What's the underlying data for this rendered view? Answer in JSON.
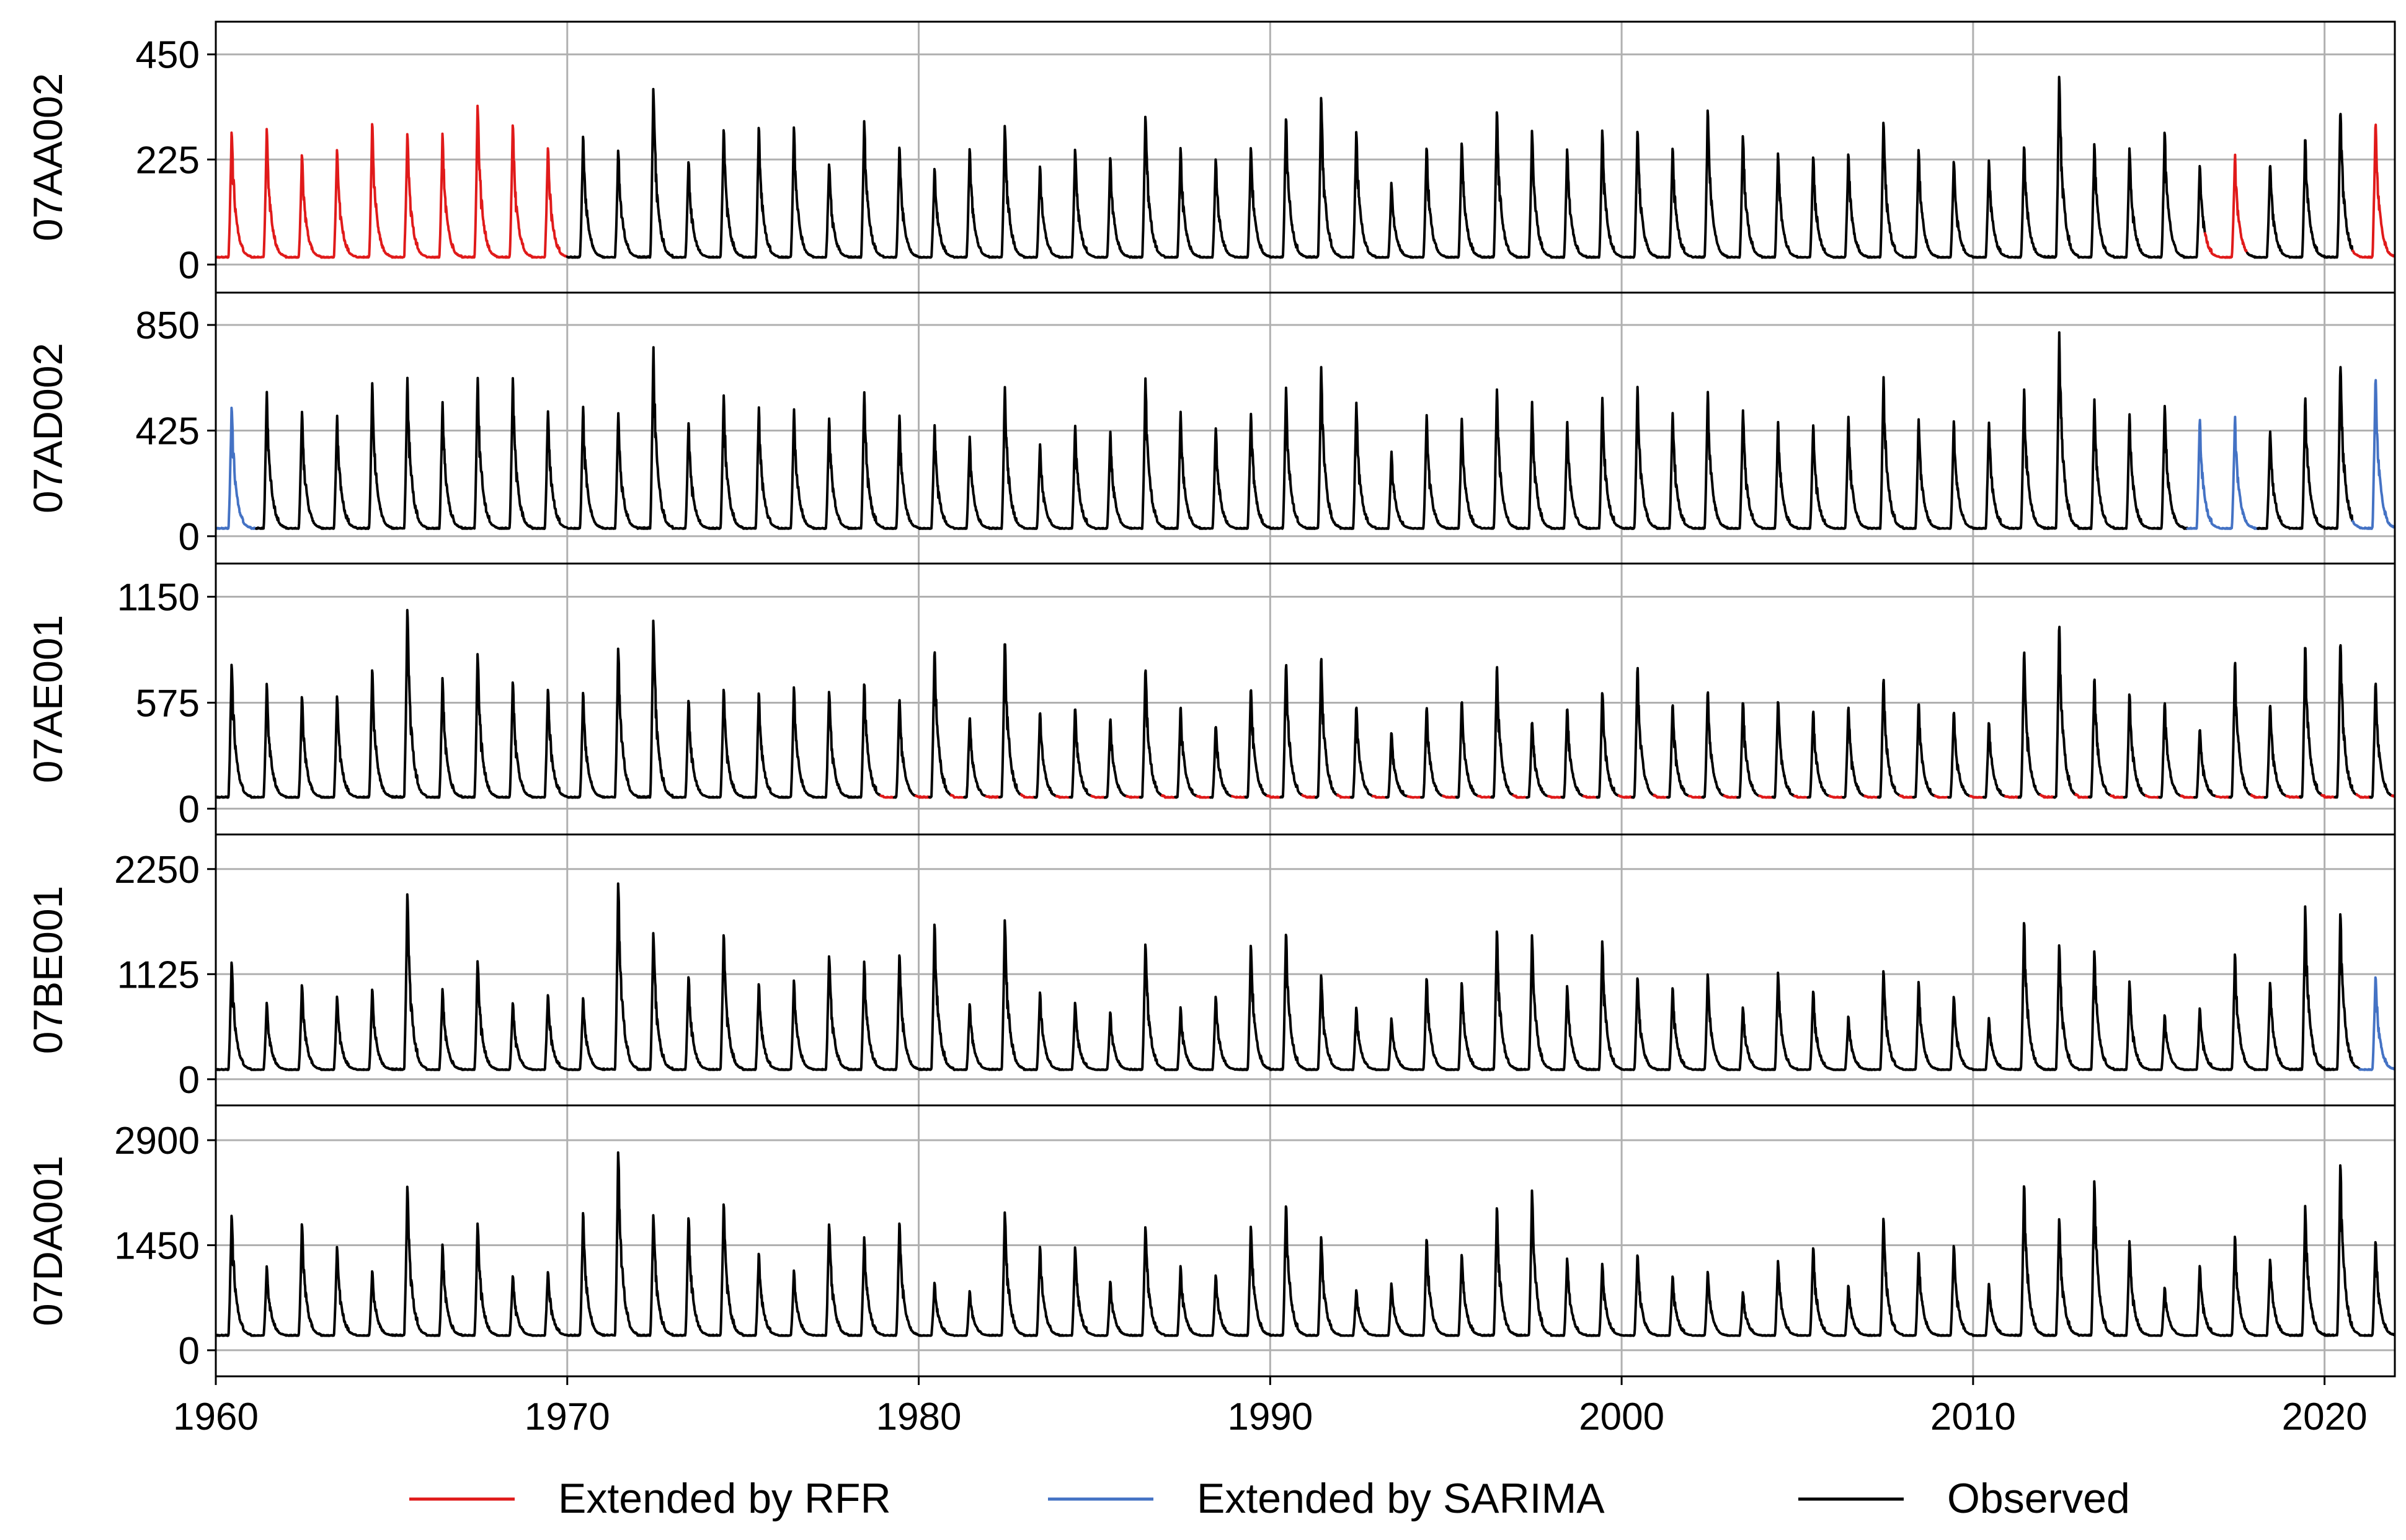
{
  "chart_data": {
    "type": "line",
    "x_axis": {
      "range": [
        1960,
        2022
      ],
      "ticks": [
        1960,
        1970,
        1980,
        1990,
        2000,
        2010,
        2020
      ],
      "grid": true
    },
    "legend": {
      "placement": "bottom-center",
      "entries": [
        {
          "key": "rfr",
          "label": "Extended by RFR",
          "color": "#e01a1a"
        },
        {
          "key": "sarima",
          "label": "Extended by SARIMA",
          "color": "#4472c4"
        },
        {
          "key": "observed",
          "label": "Observed",
          "color": "#000000"
        }
      ]
    },
    "panels": [
      {
        "station": "07AA002",
        "y_ticks": [
          0,
          225,
          450
        ],
        "y_range": [
          -60,
          520
        ],
        "base": 15,
        "years": [
          1960,
          1961,
          1962,
          1963,
          1964,
          1965,
          1966,
          1967,
          1968,
          1969,
          1970,
          1971,
          1972,
          1973,
          1974,
          1975,
          1976,
          1977,
          1978,
          1979,
          1980,
          1981,
          1982,
          1983,
          1984,
          1985,
          1986,
          1987,
          1988,
          1989,
          1990,
          1991,
          1992,
          1993,
          1994,
          1995,
          1996,
          1997,
          1998,
          1999,
          2000,
          2001,
          2002,
          2003,
          2004,
          2005,
          2006,
          2007,
          2008,
          2009,
          2010,
          2011,
          2012,
          2013,
          2014,
          2015,
          2016,
          2017,
          2018,
          2019,
          2020,
          2021
        ],
        "peaks": [
          290,
          292,
          240,
          250,
          305,
          285,
          285,
          345,
          305,
          255,
          275,
          250,
          380,
          225,
          295,
          300,
          295,
          220,
          310,
          255,
          210,
          250,
          300,
          215,
          250,
          230,
          325,
          250,
          230,
          255,
          320,
          360,
          290,
          175,
          255,
          265,
          330,
          290,
          250,
          290,
          290,
          255,
          330,
          280,
          240,
          235,
          240,
          310,
          245,
          225,
          225,
          255,
          410,
          260,
          250,
          290,
          215,
          235,
          220,
          275,
          335,
          310
        ],
        "segments": [
          {
            "source": "rfr",
            "from": 1960.0,
            "to": 1970.0
          },
          {
            "source": "observed",
            "from": 1970.0,
            "to": 2016.6
          },
          {
            "source": "rfr",
            "from": 2016.6,
            "to": 2017.8
          },
          {
            "source": "observed",
            "from": 2017.8,
            "to": 2020.8
          },
          {
            "source": "rfr",
            "from": 2020.8,
            "to": 2022.0
          }
        ]
      },
      {
        "station": "07AD002",
        "y_ticks": [
          0,
          425,
          850
        ],
        "y_range": [
          -110,
          980
        ],
        "base": 30,
        "years": [
          1960,
          1961,
          1962,
          1963,
          1964,
          1965,
          1966,
          1967,
          1968,
          1969,
          1970,
          1971,
          1972,
          1973,
          1974,
          1975,
          1976,
          1977,
          1978,
          1979,
          1980,
          1981,
          1982,
          1983,
          1984,
          1985,
          1986,
          1987,
          1988,
          1989,
          1990,
          1991,
          1992,
          1993,
          1994,
          1995,
          1996,
          1997,
          1998,
          1999,
          2000,
          2001,
          2002,
          2003,
          2004,
          2005,
          2006,
          2007,
          2008,
          2009,
          2010,
          2011,
          2012,
          2013,
          2014,
          2015,
          2016,
          2017,
          2018,
          2019,
          2020,
          2021
        ],
        "peaks": [
          530,
          580,
          505,
          490,
          615,
          640,
          540,
          640,
          640,
          510,
          520,
          500,
          760,
          460,
          570,
          520,
          510,
          480,
          580,
          485,
          450,
          400,
          600,
          375,
          450,
          420,
          640,
          500,
          440,
          500,
          600,
          680,
          540,
          340,
          490,
          480,
          590,
          540,
          460,
          560,
          600,
          500,
          580,
          510,
          460,
          450,
          480,
          640,
          470,
          470,
          460,
          590,
          820,
          550,
          490,
          530,
          480,
          480,
          430,
          560,
          700,
          650
        ],
        "segments": [
          {
            "source": "sarima",
            "from": 1960.0,
            "to": 1961.15
          },
          {
            "source": "observed",
            "from": 1961.15,
            "to": 2016.1
          },
          {
            "source": "sarima",
            "from": 2016.1,
            "to": 2018.1
          },
          {
            "source": "observed",
            "from": 2018.1,
            "to": 2020.8
          },
          {
            "source": "sarima",
            "from": 2020.8,
            "to": 2022.0
          }
        ]
      },
      {
        "station": "07AE001",
        "y_ticks": [
          0,
          575,
          1150
        ],
        "y_range": [
          -140,
          1330
        ],
        "base": 60,
        "years": [
          1960,
          1961,
          1962,
          1963,
          1964,
          1965,
          1966,
          1967,
          1968,
          1969,
          1970,
          1971,
          1972,
          1973,
          1974,
          1975,
          1976,
          1977,
          1978,
          1979,
          1980,
          1981,
          1982,
          1983,
          1984,
          1985,
          1986,
          1987,
          1988,
          1989,
          1990,
          1991,
          1992,
          1993,
          1994,
          1995,
          1996,
          1997,
          1998,
          1999,
          2000,
          2001,
          2002,
          2003,
          2004,
          2005,
          2006,
          2007,
          2008,
          2009,
          2010,
          2011,
          2012,
          2013,
          2014,
          2015,
          2016,
          2017,
          2018,
          2019,
          2020,
          2021
        ],
        "peaks": [
          800,
          680,
          620,
          620,
          760,
          1100,
          720,
          850,
          700,
          660,
          630,
          890,
          1030,
          600,
          660,
          640,
          660,
          650,
          700,
          600,
          880,
          500,
          930,
          540,
          560,
          490,
          780,
          560,
          460,
          670,
          800,
          830,
          570,
          420,
          560,
          600,
          780,
          480,
          560,
          650,
          780,
          580,
          640,
          600,
          600,
          540,
          560,
          720,
          580,
          540,
          480,
          860,
          1020,
          720,
          640,
          590,
          440,
          800,
          580,
          900,
          920,
          700
        ],
        "segments": [
          {
            "source": "observed",
            "from": 1960.0,
            "to": 1978.3
          }
        ],
        "note": "after 1978 winter low-flow gaps are filled by RFR (red)"
      },
      {
        "station": "07BE001",
        "y_ticks": [
          0,
          1125,
          2250
        ],
        "y_range": [
          -280,
          2620
        ],
        "base": 100,
        "years": [
          1960,
          1961,
          1962,
          1963,
          1964,
          1965,
          1966,
          1967,
          1968,
          1969,
          1970,
          1971,
          1972,
          1973,
          1974,
          1975,
          1976,
          1977,
          1978,
          1979,
          1980,
          1981,
          1982,
          1983,
          1984,
          1985,
          1986,
          1987,
          1988,
          1989,
          1990,
          1991,
          1992,
          1993,
          1994,
          1995,
          1996,
          1997,
          1998,
          1999,
          2000,
          2001,
          2002,
          2003,
          2004,
          2005,
          2006,
          2007,
          2008,
          2009,
          2010,
          2011,
          2012,
          2013,
          2014,
          2015,
          2016,
          2017,
          2018,
          2019,
          2020,
          2021
        ],
        "peaks": [
          1280,
          820,
          1030,
          900,
          970,
          2020,
          980,
          1280,
          830,
          920,
          870,
          2150,
          1580,
          1120,
          1580,
          1040,
          1060,
          1350,
          1270,
          1350,
          1700,
          810,
          1720,
          950,
          830,
          720,
          1480,
          770,
          900,
          1460,
          1590,
          1120,
          780,
          650,
          1100,
          1050,
          1600,
          1560,
          1010,
          1490,
          1100,
          1000,
          1120,
          780,
          1150,
          960,
          680,
          1180,
          1040,
          900,
          660,
          1700,
          1460,
          1380,
          1050,
          700,
          770,
          1340,
          1050,
          1850,
          1800,
          1120
        ],
        "segments": [
          {
            "source": "observed",
            "from": 1960.0,
            "to": 2021.0
          },
          {
            "source": "sarima",
            "from": 2021.0,
            "to": 2022.0
          }
        ]
      },
      {
        "station": "07DA001",
        "y_ticks": [
          0,
          1450,
          2900
        ],
        "y_range": [
          -360,
          3380
        ],
        "base": 200,
        "years": [
          1960,
          1961,
          1962,
          1963,
          1964,
          1965,
          1966,
          1967,
          1968,
          1969,
          1970,
          1971,
          1972,
          1973,
          1974,
          1975,
          1976,
          1977,
          1978,
          1979,
          1980,
          1981,
          1982,
          1983,
          1984,
          1985,
          1986,
          1987,
          1988,
          1989,
          1990,
          1991,
          1992,
          1993,
          1994,
          1995,
          1996,
          1997,
          1998,
          1999,
          2000,
          2001,
          2002,
          2003,
          2004,
          2005,
          2006,
          2007,
          2008,
          2009,
          2010,
          2011,
          2012,
          2013,
          2014,
          2015,
          2016,
          2017,
          2018,
          2019,
          2020,
          2021
        ],
        "peaks": [
          1900,
          1160,
          1780,
          1450,
          1100,
          2300,
          1480,
          1770,
          1040,
          1100,
          1900,
          2800,
          1880,
          1870,
          2060,
          1360,
          1100,
          1780,
          1570,
          1780,
          950,
          820,
          1920,
          1460,
          1440,
          950,
          1740,
          1160,
          1050,
          1740,
          2040,
          1570,
          840,
          920,
          1560,
          1340,
          1980,
          2230,
          1280,
          1200,
          1330,
          1040,
          1080,
          810,
          1240,
          1440,
          900,
          1850,
          1340,
          1470,
          920,
          2300,
          1840,
          2350,
          1510,
          880,
          1180,
          1570,
          1270,
          1990,
          2600,
          1530
        ],
        "segments": [
          {
            "source": "observed",
            "from": 1960.0,
            "to": 2022.0
          }
        ]
      }
    ]
  }
}
